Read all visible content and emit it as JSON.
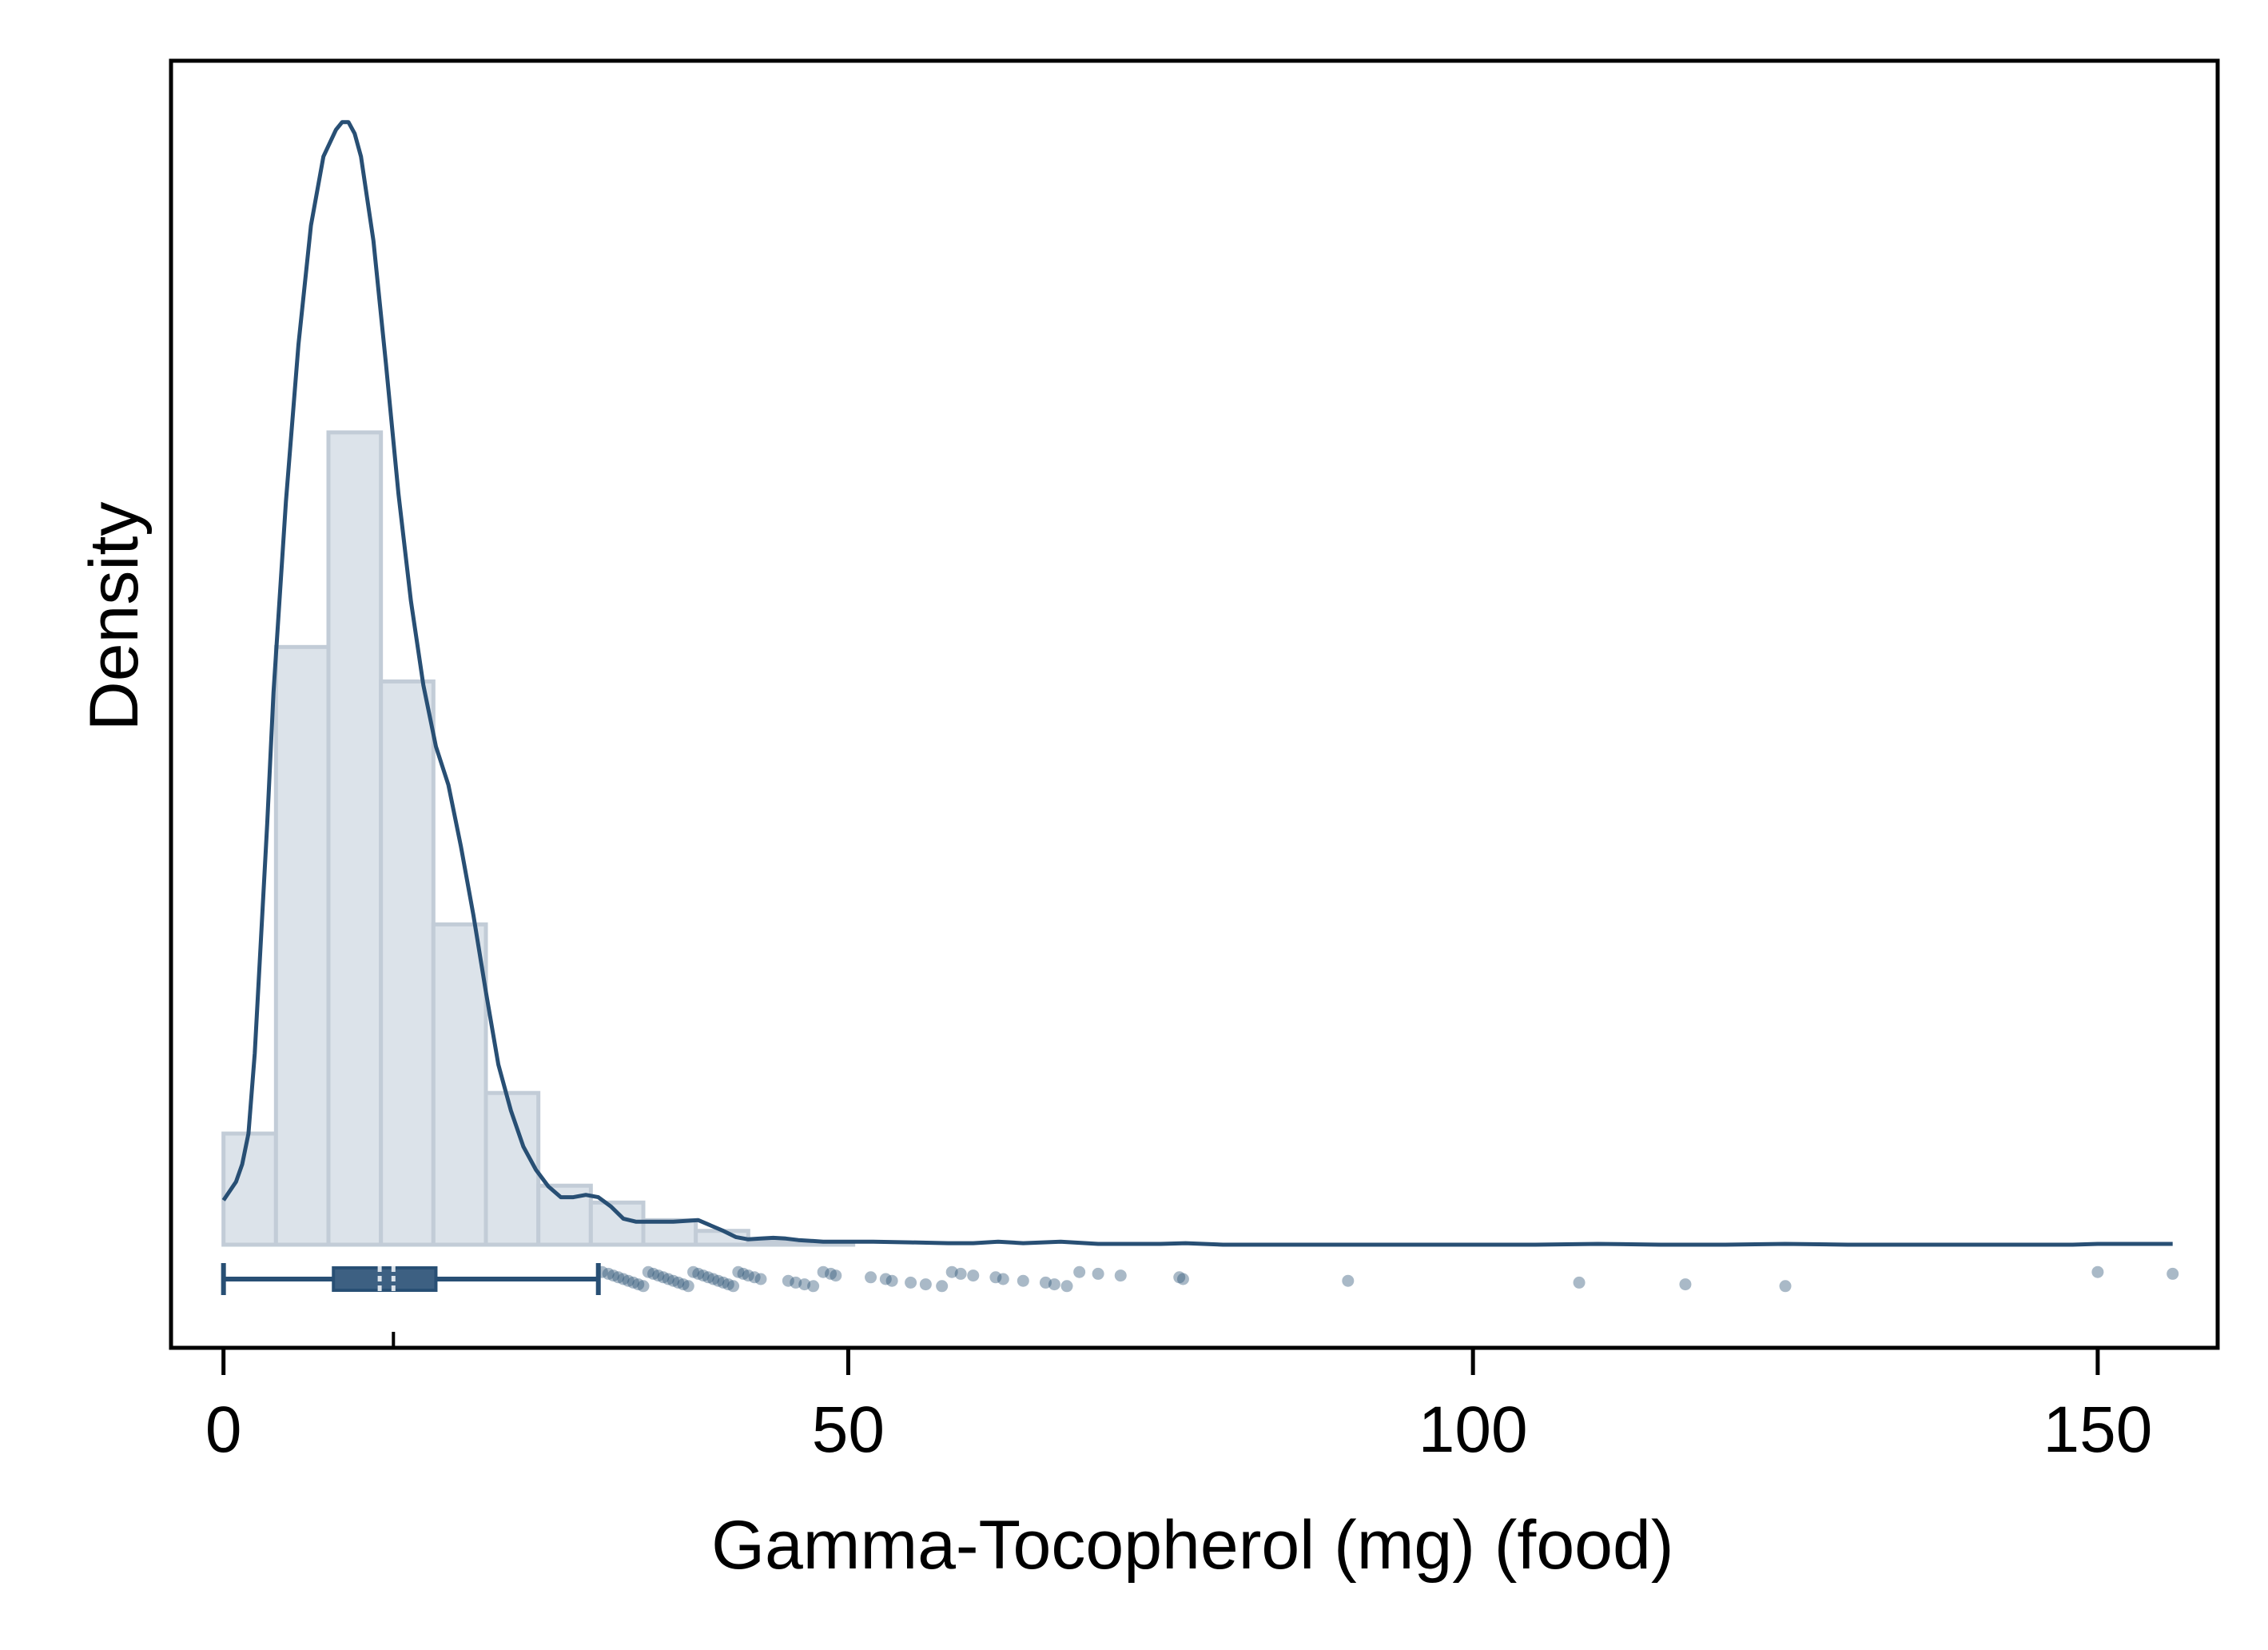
{
  "chart_data": {
    "type": "histogram",
    "title": "",
    "xlabel": "Gamma-Tocopherol (mg) (food)",
    "ylabel": "Density",
    "xlim": [
      -4.2,
      159.6
    ],
    "x_ticks": [
      0,
      50,
      100,
      150
    ],
    "x_tick_labels": [
      "0",
      "50",
      "100",
      "150"
    ],
    "y_ticks_shown": false,
    "grid": false,
    "legend": "none",
    "colors": {
      "bar_fill": "#dce3ea",
      "bar_stroke": "#c2ccd7",
      "line": "#284f74",
      "points": "#284f74",
      "box": "#284f74",
      "axes": "#000000"
    },
    "histogram": {
      "bin_width": 4.2,
      "bins": [
        {
          "x0": 0.0,
          "x1": 4.2,
          "density": 0.0145
        },
        {
          "x0": 4.2,
          "x1": 8.4,
          "density": 0.078
        },
        {
          "x0": 8.4,
          "x1": 12.6,
          "density": 0.106
        },
        {
          "x0": 12.6,
          "x1": 16.8,
          "density": 0.0735
        },
        {
          "x0": 16.8,
          "x1": 21.0,
          "density": 0.0418
        },
        {
          "x0": 21.0,
          "x1": 25.2,
          "density": 0.0198
        },
        {
          "x0": 25.2,
          "x1": 29.4,
          "density": 0.0077
        },
        {
          "x0": 29.4,
          "x1": 33.6,
          "density": 0.0055
        },
        {
          "x0": 33.6,
          "x1": 37.8,
          "density": 0.0032
        },
        {
          "x0": 37.8,
          "x1": 42.0,
          "density": 0.0018
        },
        {
          "x0": 42.0,
          "x1": 46.2,
          "density": 0.0004
        },
        {
          "x0": 46.2,
          "x1": 50.4,
          "density": 0.0003
        }
      ]
    },
    "density_curve": {
      "x": [
        0.0,
        1.0,
        1.5,
        2.0,
        2.5,
        3.0,
        3.5,
        4.0,
        5.0,
        6.0,
        7.0,
        8.0,
        9.0,
        9.5,
        10.0,
        10.5,
        11.0,
        12.0,
        13.0,
        14.0,
        15.0,
        16.0,
        17.0,
        18.0,
        19.0,
        20.0,
        21.0,
        22.0,
        23.0,
        24.0,
        25.0,
        26.0,
        27.0,
        28.0,
        29.0,
        30.0,
        31.0,
        32.0,
        33.0,
        34.0,
        35.0,
        36.0,
        38.0,
        39.0,
        40.0,
        41.0,
        42.0,
        43.0,
        44.0,
        45.0,
        46.0,
        48.0,
        50.0,
        52.0,
        55.0,
        58.0,
        60.0,
        62.0,
        64.0,
        67.0,
        70.0,
        75.0,
        77.0,
        80.0,
        85.0,
        90.0,
        100.0,
        105.0,
        110.0,
        115.0,
        120.0,
        125.0,
        130.0,
        140.0,
        148.0,
        150.0,
        152.0,
        156.0
      ],
      "y": [
        0.0058,
        0.0082,
        0.0105,
        0.0145,
        0.025,
        0.04,
        0.055,
        0.072,
        0.097,
        0.1175,
        0.133,
        0.142,
        0.1455,
        0.1465,
        0.1465,
        0.145,
        0.142,
        0.131,
        0.115,
        0.098,
        0.084,
        0.073,
        0.065,
        0.06,
        0.052,
        0.043,
        0.033,
        0.0235,
        0.0175,
        0.0128,
        0.0098,
        0.0076,
        0.0062,
        0.0062,
        0.0065,
        0.0062,
        0.005,
        0.0034,
        0.003,
        0.003,
        0.003,
        0.003,
        0.0032,
        0.0025,
        0.0018,
        0.001,
        0.0007,
        0.0008,
        0.0009,
        0.0008,
        0.0006,
        0.0004,
        0.0004,
        0.0004,
        0.0003,
        0.0002,
        0.0002,
        0.0004,
        0.0002,
        0.0004,
        0.0001,
        0.0001,
        0.0002,
        0.0,
        0.0,
        0.0,
        0.0,
        0.0,
        0.0001,
        0.0,
        0.0,
        0.0001,
        0.0,
        0.0,
        0.0,
        0.0001,
        0.0001,
        0.0001
      ]
    },
    "ylim": [
      0,
      0.1545
    ],
    "boxplot": {
      "whisker_low": 0.0,
      "q1": 8.8,
      "median": 12.5,
      "mean": 13.6,
      "q3": 17.0,
      "whisker_high": 30.0
    },
    "outliers": [
      30.3,
      30.8,
      31.2,
      31.6,
      32.0,
      32.4,
      32.8,
      33.2,
      33.6,
      34.0,
      34.4,
      34.8,
      35.2,
      35.6,
      36.0,
      36.4,
      36.8,
      37.2,
      37.6,
      38.0,
      38.4,
      38.8,
      39.2,
      39.6,
      40.0,
      40.4,
      40.8,
      41.2,
      41.6,
      42.0,
      42.5,
      43.0,
      45.2,
      45.8,
      46.5,
      47.2,
      48.0,
      48.6,
      49.0,
      51.8,
      53.0,
      53.5,
      55.0,
      56.2,
      57.5,
      58.3,
      59.0,
      60.0,
      61.8,
      62.4,
      64.0,
      65.8,
      66.5,
      67.5,
      68.5,
      70.0,
      71.8,
      76.5,
      76.8,
      90.0,
      108.5,
      117.0,
      125.0,
      150.0,
      156.0
    ]
  }
}
